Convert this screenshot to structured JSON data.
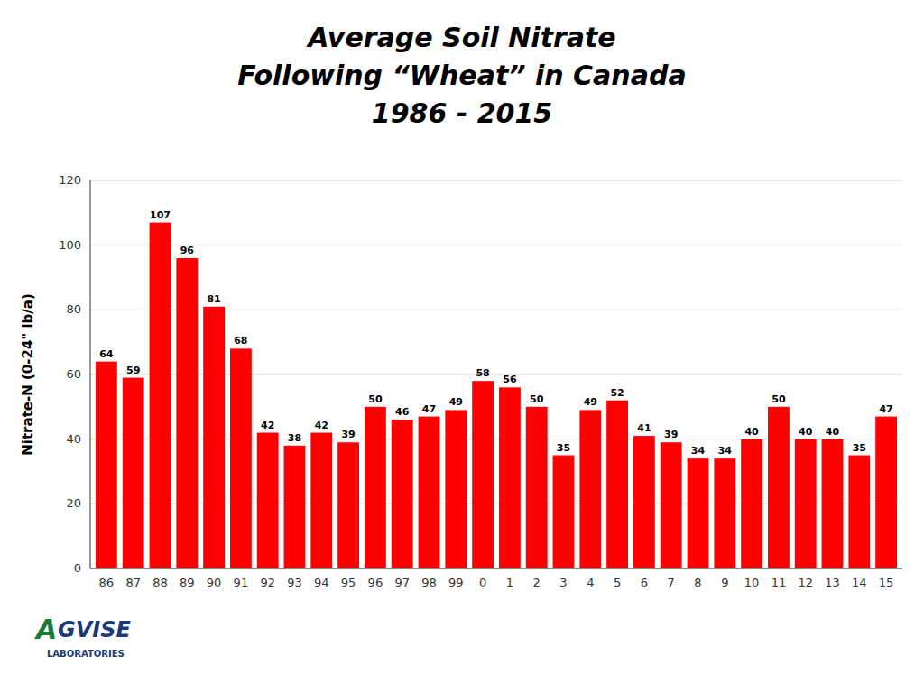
{
  "chart_data": {
    "type": "bar",
    "title": "Average Soil Nitrate\nFollowing “Wheat” in Canada\n1986 - 2015",
    "ylabel": "Nitrate-N (0-24\" lb/a)",
    "categories": [
      "86",
      "87",
      "88",
      "89",
      "90",
      "91",
      "92",
      "93",
      "94",
      "95",
      "96",
      "97",
      "98",
      "99",
      "0",
      "1",
      "2",
      "3",
      "4",
      "5",
      "6",
      "7",
      "8",
      "9",
      "10",
      "11",
      "12",
      "13",
      "14",
      "15"
    ],
    "values": [
      64,
      59,
      107,
      96,
      81,
      68,
      42,
      38,
      42,
      39,
      50,
      46,
      47,
      49,
      58,
      56,
      50,
      35,
      49,
      52,
      41,
      39,
      34,
      34,
      40,
      50,
      40,
      40,
      35,
      47
    ],
    "color": "#ff0000",
    "ylim": [
      0,
      120
    ],
    "yticks": [
      0,
      20,
      40,
      60,
      80,
      100,
      120
    ],
    "grid": true,
    "data_labels": true,
    "annotations": [
      {
        "text": "A",
        "color": "#1a7a3a"
      },
      {
        "text": "GVISE",
        "color": "#1a3a7a"
      },
      {
        "text": "LABORATORIES",
        "color": "#1a3a7a"
      }
    ]
  }
}
